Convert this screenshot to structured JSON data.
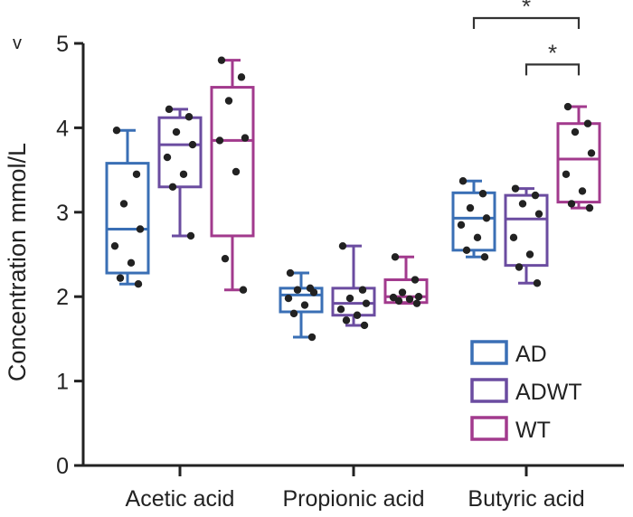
{
  "chart_data": {
    "type": "box",
    "corner_label": "v",
    "ylabel": "Concentration mmol/L",
    "ylim": [
      0,
      5
    ],
    "yticks": [
      0,
      1,
      2,
      3,
      4,
      5
    ],
    "categories": [
      "Acetic acid",
      "Propionic acid",
      "Butyric acid"
    ],
    "legend_position": "bottom-right",
    "series": [
      {
        "name": "AD",
        "color": "#3a6fb5",
        "boxes": [
          {
            "min": 2.15,
            "q1": 2.28,
            "median": 2.8,
            "q3": 3.58,
            "max": 3.97,
            "points": [
              3.97,
              3.45,
              3.1,
              2.8,
              2.6,
              2.4,
              2.22,
              2.15
            ]
          },
          {
            "min": 1.52,
            "q1": 1.82,
            "median": 2.02,
            "q3": 2.1,
            "max": 2.28,
            "points": [
              2.28,
              2.1,
              2.08,
              2.05,
              1.98,
              1.9,
              1.8,
              1.52
            ]
          },
          {
            "min": 2.47,
            "q1": 2.55,
            "median": 2.93,
            "q3": 3.23,
            "max": 3.37,
            "points": [
              3.37,
              3.22,
              3.05,
              2.93,
              2.85,
              2.7,
              2.55,
              2.47
            ]
          }
        ]
      },
      {
        "name": "ADWT",
        "color": "#6b4ca0",
        "boxes": [
          {
            "min": 2.72,
            "q1": 3.3,
            "median": 3.8,
            "q3": 4.12,
            "max": 4.22,
            "points": [
              4.22,
              4.13,
              3.95,
              3.8,
              3.65,
              3.45,
              3.3,
              2.72
            ]
          },
          {
            "min": 1.66,
            "q1": 1.78,
            "median": 1.92,
            "q3": 2.1,
            "max": 2.6,
            "points": [
              2.6,
              2.08,
              1.98,
              1.92,
              1.85,
              1.78,
              1.72,
              1.66
            ]
          },
          {
            "min": 2.16,
            "q1": 2.37,
            "median": 2.92,
            "q3": 3.2,
            "max": 3.28,
            "points": [
              3.28,
              3.2,
              3.1,
              2.98,
              2.7,
              2.5,
              2.35,
              2.16
            ]
          }
        ]
      },
      {
        "name": "WT",
        "color": "#a23a8d",
        "boxes": [
          {
            "min": 2.08,
            "q1": 2.72,
            "median": 3.85,
            "q3": 4.48,
            "max": 4.8,
            "points": [
              4.8,
              4.6,
              4.32,
              3.88,
              3.85,
              3.48,
              2.45,
              2.08
            ]
          },
          {
            "min": 1.92,
            "q1": 1.93,
            "median": 2.0,
            "q3": 2.2,
            "max": 2.47,
            "points": [
              2.47,
              2.2,
              2.05,
              2.0,
              1.99,
              1.97,
              1.95,
              1.92
            ]
          },
          {
            "min": 3.05,
            "q1": 3.12,
            "median": 3.63,
            "q3": 4.05,
            "max": 4.25,
            "points": [
              4.25,
              4.05,
              3.95,
              3.7,
              3.45,
              3.25,
              3.1,
              3.05
            ]
          }
        ]
      }
    ],
    "significance": [
      {
        "category": "Butyric acid",
        "from": "AD",
        "to": "WT",
        "label": "*",
        "level": 5.3
      },
      {
        "category": "Butyric acid",
        "from": "ADWT",
        "to": "WT",
        "label": "*",
        "level": 4.75
      }
    ]
  }
}
